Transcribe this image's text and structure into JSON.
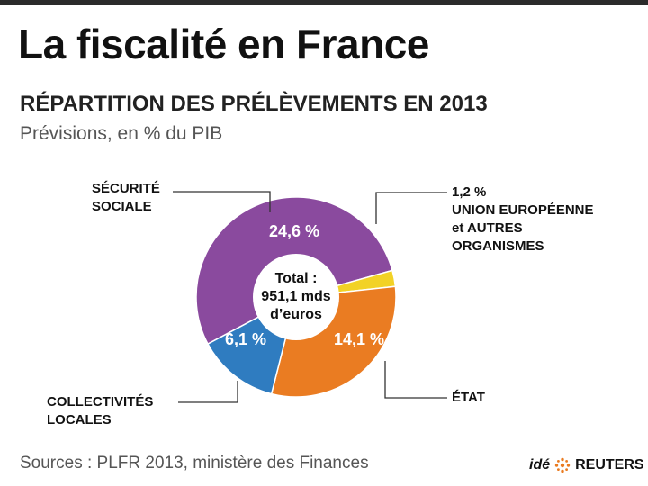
{
  "header": {
    "title": "La fiscalité en France",
    "subtitle": "RÉPARTITION DES PRÉLÈVEMENTS EN 2013",
    "note": "Prévisions, en % du PIB"
  },
  "chart_data": {
    "type": "pie",
    "variant": "donut",
    "unit": "% du PIB",
    "slices": [
      {
        "name": "SÉCURITÉ SOCIALE",
        "label_lines": [
          "SÉCURITÉ",
          "SOCIALE"
        ],
        "value": 24.6,
        "display": "24,6 %",
        "color": "#8a4a9e"
      },
      {
        "name": "UNION EUROPÉENNE et AUTRES ORGANISMES",
        "label_lines": [
          "1,2 %",
          "UNION EUROPÉENNE",
          "et AUTRES",
          "ORGANISMES"
        ],
        "value": 1.2,
        "display": "1,2 %",
        "color": "#f2d226"
      },
      {
        "name": "ÉTAT",
        "label_lines": [
          "ÉTAT"
        ],
        "value": 14.1,
        "display": "14,1 %",
        "color": "#ea7c22"
      },
      {
        "name": "COLLECTIVITÉS LOCALES",
        "label_lines": [
          "COLLECTIVITÉS",
          "LOCALES"
        ],
        "value": 6.1,
        "display": "6,1 %",
        "color": "#2f7cc0"
      }
    ],
    "center_lines": [
      "Total :",
      "951,1 mds",
      "d’euros"
    ]
  },
  "footer": {
    "source": "Sources : PLFR 2013, ministère des Finances",
    "brand_prefix": "idé",
    "brand_name": "REUTERS",
    "logo_icon": "reuters-dot-logo-icon"
  }
}
